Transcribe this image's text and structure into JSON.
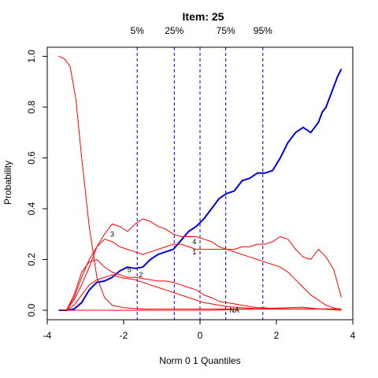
{
  "chart_data": {
    "type": "line",
    "title": "Item:  25",
    "xlabel": "Norm 0 1 Quantiles",
    "ylabel": "Probability",
    "xlim": [
      -4,
      4
    ],
    "ylim": [
      0,
      1
    ],
    "xticks": [
      -4,
      -2,
      0,
      2,
      4
    ],
    "yticks": [
      0.0,
      0.2,
      0.4,
      0.6,
      0.8,
      1.0
    ],
    "ytick_labels": [
      "0.0",
      "0.2",
      "0.4",
      "0.6",
      "0.8",
      "1.0"
    ],
    "grid": false,
    "quantiles": [
      {
        "label": "5%",
        "x": -1.645
      },
      {
        "label": "25%",
        "x": -0.674
      },
      {
        "label": "75%",
        "x": 0.674
      },
      {
        "label": "95%",
        "x": 1.645
      }
    ],
    "center_line": {
      "x": 0
    },
    "colors": {
      "options": "#ff0000",
      "key": "#0000dd",
      "quantile": "#0000cc"
    },
    "series": [
      {
        "role": "key",
        "x": [
          -3.7,
          -3.5,
          -3.3,
          -3.1,
          -2.9,
          -2.7,
          -2.5,
          -2.3,
          -2.1,
          -1.9,
          -1.7,
          -1.5,
          -1.3,
          -1.1,
          -0.9,
          -0.7,
          -0.5,
          -0.3,
          -0.1,
          0.1,
          0.3,
          0.5,
          0.7,
          0.9,
          1.1,
          1.3,
          1.5,
          1.7,
          1.9,
          2.1,
          2.3,
          2.5,
          2.7,
          2.9,
          3.0,
          3.1,
          3.2,
          3.3,
          3.4,
          3.5,
          3.6,
          3.7
        ],
        "values": [
          0.0,
          0.0,
          0.005,
          0.03,
          0.08,
          0.11,
          0.115,
          0.13,
          0.155,
          0.17,
          0.165,
          0.17,
          0.2,
          0.22,
          0.23,
          0.24,
          0.275,
          0.31,
          0.33,
          0.36,
          0.4,
          0.44,
          0.46,
          0.47,
          0.51,
          0.52,
          0.54,
          0.54,
          0.55,
          0.6,
          0.66,
          0.7,
          0.72,
          0.7,
          0.72,
          0.74,
          0.78,
          0.8,
          0.84,
          0.88,
          0.92,
          0.95
        ]
      },
      {
        "role": "option",
        "x": [
          -3.7,
          -3.55,
          -3.4,
          -3.25,
          -3.1,
          -2.9,
          -2.7,
          -2.5,
          -2.3,
          -2.0,
          -1.5,
          -1.0,
          -0.5,
          0.0,
          0.5,
          1.0,
          1.5,
          2.0,
          2.5,
          3.0,
          3.5,
          3.7
        ],
        "values": [
          1.0,
          0.99,
          0.96,
          0.83,
          0.6,
          0.33,
          0.13,
          0.05,
          0.02,
          0.01,
          0.005,
          0.005,
          0.005,
          0.005,
          0.005,
          0.005,
          0.005,
          0.005,
          0.005,
          0.005,
          0.005,
          0.005
        ]
      },
      {
        "role": "option",
        "x": [
          -3.7,
          -3.5,
          -3.3,
          -3.1,
          -2.9,
          -2.7,
          -2.5,
          -2.3,
          -2.1,
          -1.9,
          -1.7,
          -1.5,
          -1.3,
          -1.1,
          -0.9,
          -0.7,
          -0.5,
          -0.3,
          -0.1,
          0.1,
          0.3,
          0.5,
          0.7,
          0.9,
          1.1,
          1.3,
          1.5,
          1.7,
          1.9,
          2.1,
          2.3,
          2.5,
          2.7,
          2.9,
          3.1,
          3.3,
          3.5,
          3.7
        ],
        "values": [
          0.0,
          0.0,
          0.04,
          0.1,
          0.17,
          0.25,
          0.3,
          0.34,
          0.33,
          0.31,
          0.34,
          0.36,
          0.35,
          0.33,
          0.32,
          0.3,
          0.29,
          0.29,
          0.29,
          0.28,
          0.27,
          0.25,
          0.24,
          0.23,
          0.22,
          0.21,
          0.2,
          0.19,
          0.18,
          0.17,
          0.15,
          0.12,
          0.09,
          0.06,
          0.04,
          0.02,
          0.01,
          0.0
        ]
      },
      {
        "role": "option",
        "x": [
          -3.7,
          -3.5,
          -3.3,
          -3.1,
          -2.9,
          -2.7,
          -2.5,
          -2.3,
          -2.1,
          -1.9,
          -1.7,
          -1.5,
          -1.3,
          -1.1,
          -0.9,
          -0.7,
          -0.5,
          -0.3,
          -0.1,
          0.1,
          0.3,
          0.5,
          0.7,
          0.9,
          1.1,
          1.3,
          1.5,
          1.7,
          1.9,
          2.1,
          2.3,
          2.5,
          2.7,
          2.9,
          3.1,
          3.3,
          3.5,
          3.7
        ],
        "values": [
          0.0,
          0.0,
          0.05,
          0.13,
          0.2,
          0.25,
          0.28,
          0.27,
          0.25,
          0.24,
          0.23,
          0.22,
          0.23,
          0.24,
          0.25,
          0.26,
          0.26,
          0.25,
          0.24,
          0.24,
          0.24,
          0.24,
          0.24,
          0.24,
          0.25,
          0.25,
          0.26,
          0.26,
          0.27,
          0.29,
          0.28,
          0.24,
          0.21,
          0.2,
          0.24,
          0.21,
          0.16,
          0.05
        ]
      },
      {
        "role": "option",
        "x": [
          -3.7,
          -3.5,
          -3.3,
          -3.1,
          -2.9,
          -2.7,
          -2.5,
          -2.3,
          -2.1,
          -1.9,
          -1.7,
          -1.5,
          -1.3,
          -1.1,
          -0.9,
          -0.7,
          -0.5,
          -0.3,
          -0.1,
          0.1,
          0.3,
          0.5,
          0.7,
          0.9,
          1.1,
          1.3,
          1.5,
          1.7,
          1.9,
          2.1,
          2.3,
          2.5,
          2.7,
          2.9,
          3.1,
          3.3,
          3.5,
          3.7
        ],
        "values": [
          0.0,
          0.0,
          0.06,
          0.15,
          0.19,
          0.2,
          0.17,
          0.15,
          0.14,
          0.13,
          0.13,
          0.125,
          0.12,
          0.115,
          0.115,
          0.11,
          0.1,
          0.09,
          0.08,
          0.06,
          0.05,
          0.035,
          0.03,
          0.025,
          0.02,
          0.015,
          0.01,
          0.01,
          0.005,
          0.005,
          0.005,
          0.005,
          0.005,
          0.005,
          0.005,
          0.005,
          0.005,
          0.005
        ]
      },
      {
        "role": "option",
        "x": [
          -3.7,
          -3.5,
          -3.3,
          -3.1,
          -2.9,
          -2.7,
          -2.5,
          -2.3,
          -2.1,
          -1.9,
          -1.7,
          -1.5,
          -1.3,
          -1.1,
          -0.9,
          -0.7,
          -0.5,
          -0.3,
          -0.1,
          0.1,
          0.3,
          0.5,
          0.7,
          0.9,
          1.1,
          1.3,
          1.5,
          1.7,
          1.9,
          2.1,
          2.3,
          2.5,
          2.7,
          2.9,
          3.1,
          3.3,
          3.5,
          3.7
        ],
        "values": [
          0.0,
          0.0,
          0.02,
          0.06,
          0.1,
          0.12,
          0.13,
          0.14,
          0.13,
          0.125,
          0.12,
          0.11,
          0.1,
          0.09,
          0.08,
          0.07,
          0.06,
          0.05,
          0.04,
          0.03,
          0.025,
          0.02,
          0.015,
          0.012,
          0.01,
          0.008,
          0.006,
          0.005,
          0.005,
          0.005,
          0.005,
          0.005,
          0.005,
          0.005,
          0.005,
          0.005,
          0.005,
          0.005
        ]
      },
      {
        "role": "option",
        "x": [
          -3.7,
          -3.3,
          -2.9,
          -2.5,
          -2.1,
          -1.7,
          -1.3,
          -0.9,
          -0.5,
          -0.1,
          0.3,
          0.7,
          1.1,
          1.5,
          1.9,
          2.3,
          2.7,
          3.1,
          3.5,
          3.7
        ],
        "values": [
          0.0,
          0.0,
          0.0,
          0.0,
          0.0,
          0.0,
          0.0,
          0.0,
          0.0,
          0.0,
          0.0,
          0.002,
          0.004,
          0.006,
          0.008,
          0.01,
          0.012,
          0.005,
          0.002,
          0.0
        ]
      }
    ],
    "curve_labels": [
      {
        "text": "3",
        "x": -2.3,
        "y": 0.3
      },
      {
        "text": "5",
        "x": -1.85,
        "y": 0.16
      },
      {
        "text": "2",
        "x": -1.55,
        "y": 0.14
      },
      {
        "text": "4",
        "x": -0.15,
        "y": 0.27
      },
      {
        "text": "1",
        "x": -0.15,
        "y": 0.23
      },
      {
        "text": "NA",
        "x": 0.9,
        "y": 0.0
      }
    ]
  }
}
